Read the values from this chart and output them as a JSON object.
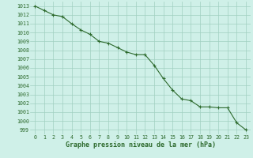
{
  "x": [
    0,
    1,
    2,
    3,
    4,
    5,
    6,
    7,
    8,
    9,
    10,
    11,
    12,
    13,
    14,
    15,
    16,
    17,
    18,
    19,
    20,
    21,
    22,
    23
  ],
  "y": [
    1013,
    1012.5,
    1012,
    1011.8,
    1011,
    1010.3,
    1009.8,
    1009,
    1008.8,
    1008.3,
    1007.8,
    1007.5,
    1007.5,
    1006.3,
    1004.8,
    1003.5,
    1002.5,
    1002.3,
    1001.6,
    1001.6,
    1001.5,
    1001.5,
    999.8,
    999
  ],
  "xlim": [
    -0.5,
    23.5
  ],
  "ylim": [
    998.5,
    1013.5
  ],
  "yticks": [
    999,
    1000,
    1001,
    1002,
    1003,
    1004,
    1005,
    1006,
    1007,
    1008,
    1009,
    1010,
    1011,
    1012,
    1013
  ],
  "xticks": [
    0,
    1,
    2,
    3,
    4,
    5,
    6,
    7,
    8,
    9,
    10,
    11,
    12,
    13,
    14,
    15,
    16,
    17,
    18,
    19,
    20,
    21,
    22,
    23
  ],
  "xlabel": "Graphe pression niveau de la mer (hPa)",
  "line_color": "#2d6a2d",
  "marker": "+",
  "marker_color": "#2d6a2d",
  "bg_color": "#cff0e8",
  "grid_color": "#a0cfc0",
  "tick_label_color": "#2d6a2d",
  "xlabel_color": "#2d6a2d",
  "xlabel_fontsize": 6.0,
  "tick_fontsize": 4.8,
  "linewidth": 0.8,
  "markersize": 3.0
}
